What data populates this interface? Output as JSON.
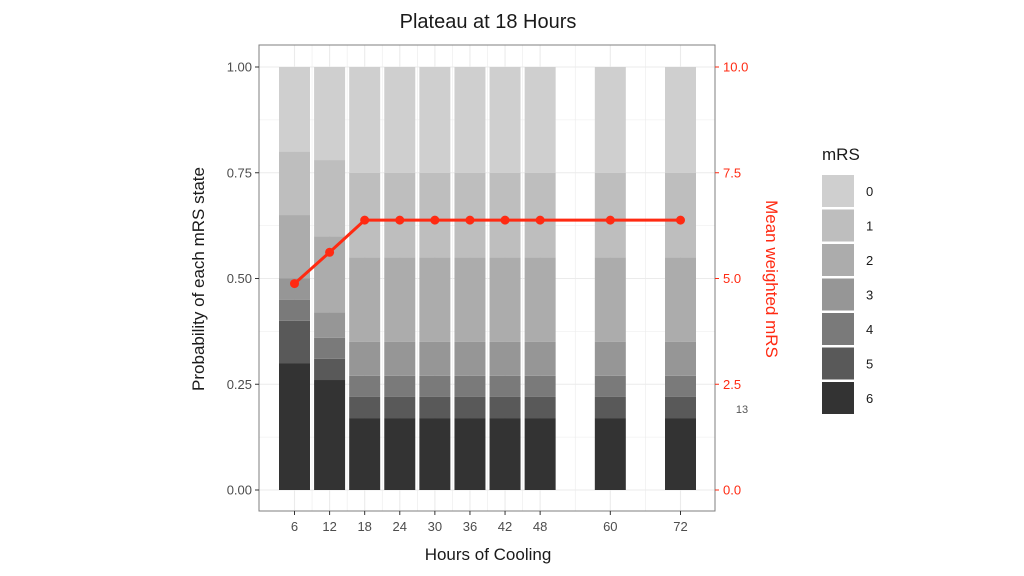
{
  "chart_data": {
    "type": "bar",
    "subtype": "stacked-probability-with-secondary-line",
    "title": "Plateau at 18 Hours",
    "xlabel": "Hours of Cooling",
    "ylabel": "Probability of each mRS state",
    "ylabel_right": "Mean weighted mRS",
    "x": [
      6,
      12,
      18,
      24,
      30,
      36,
      42,
      48,
      60,
      72
    ],
    "xticks": [
      "6",
      "12",
      "18",
      "24",
      "30",
      "36",
      "42",
      "48",
      "60",
      "72"
    ],
    "xlim": [
      1,
      77
    ],
    "ylim": [
      0,
      1
    ],
    "ylim_right": [
      0,
      10
    ],
    "yticks": [
      "0.00",
      "0.25",
      "0.50",
      "0.75",
      "1.00"
    ],
    "yticks_right": [
      "0.0",
      "2.5",
      "5.0",
      "7.5",
      "10.0"
    ],
    "grid": true,
    "legend": {
      "title": "mRS",
      "position": "right",
      "entries": [
        "0",
        "1",
        "2",
        "3",
        "4",
        "5",
        "6"
      ]
    },
    "series": [
      {
        "name": "6",
        "values": [
          0.3,
          0.26,
          0.17,
          0.17,
          0.17,
          0.17,
          0.17,
          0.17,
          0.17,
          0.17
        ]
      },
      {
        "name": "5",
        "values": [
          0.1,
          0.05,
          0.05,
          0.05,
          0.05,
          0.05,
          0.05,
          0.05,
          0.05,
          0.05
        ]
      },
      {
        "name": "4",
        "values": [
          0.05,
          0.05,
          0.05,
          0.05,
          0.05,
          0.05,
          0.05,
          0.05,
          0.05,
          0.05
        ]
      },
      {
        "name": "3",
        "values": [
          0.05,
          0.06,
          0.08,
          0.08,
          0.08,
          0.08,
          0.08,
          0.08,
          0.08,
          0.08
        ]
      },
      {
        "name": "2",
        "values": [
          0.15,
          0.18,
          0.2,
          0.2,
          0.2,
          0.2,
          0.2,
          0.2,
          0.2,
          0.2
        ]
      },
      {
        "name": "1",
        "values": [
          0.15,
          0.18,
          0.2,
          0.2,
          0.2,
          0.2,
          0.2,
          0.2,
          0.2,
          0.2
        ]
      },
      {
        "name": "0",
        "values": [
          0.2,
          0.22,
          0.25,
          0.25,
          0.25,
          0.25,
          0.25,
          0.25,
          0.25,
          0.25
        ]
      }
    ],
    "line_series": {
      "name": "Mean weighted mRS",
      "axis": "right",
      "values": [
        4.88,
        5.62,
        6.38,
        6.38,
        6.38,
        6.38,
        6.38,
        6.38,
        6.38,
        6.38
      ]
    },
    "colors": {
      "6": "#333333",
      "5": "#595959",
      "4": "#7a7a7a",
      "3": "#969696",
      "2": "#acacac",
      "1": "#bebebe",
      "0": "#cfcfcf",
      "line": "#ff2a12",
      "grid": "#ebebeb",
      "panel_border": "#7f7f7f"
    }
  },
  "page_number": "13"
}
